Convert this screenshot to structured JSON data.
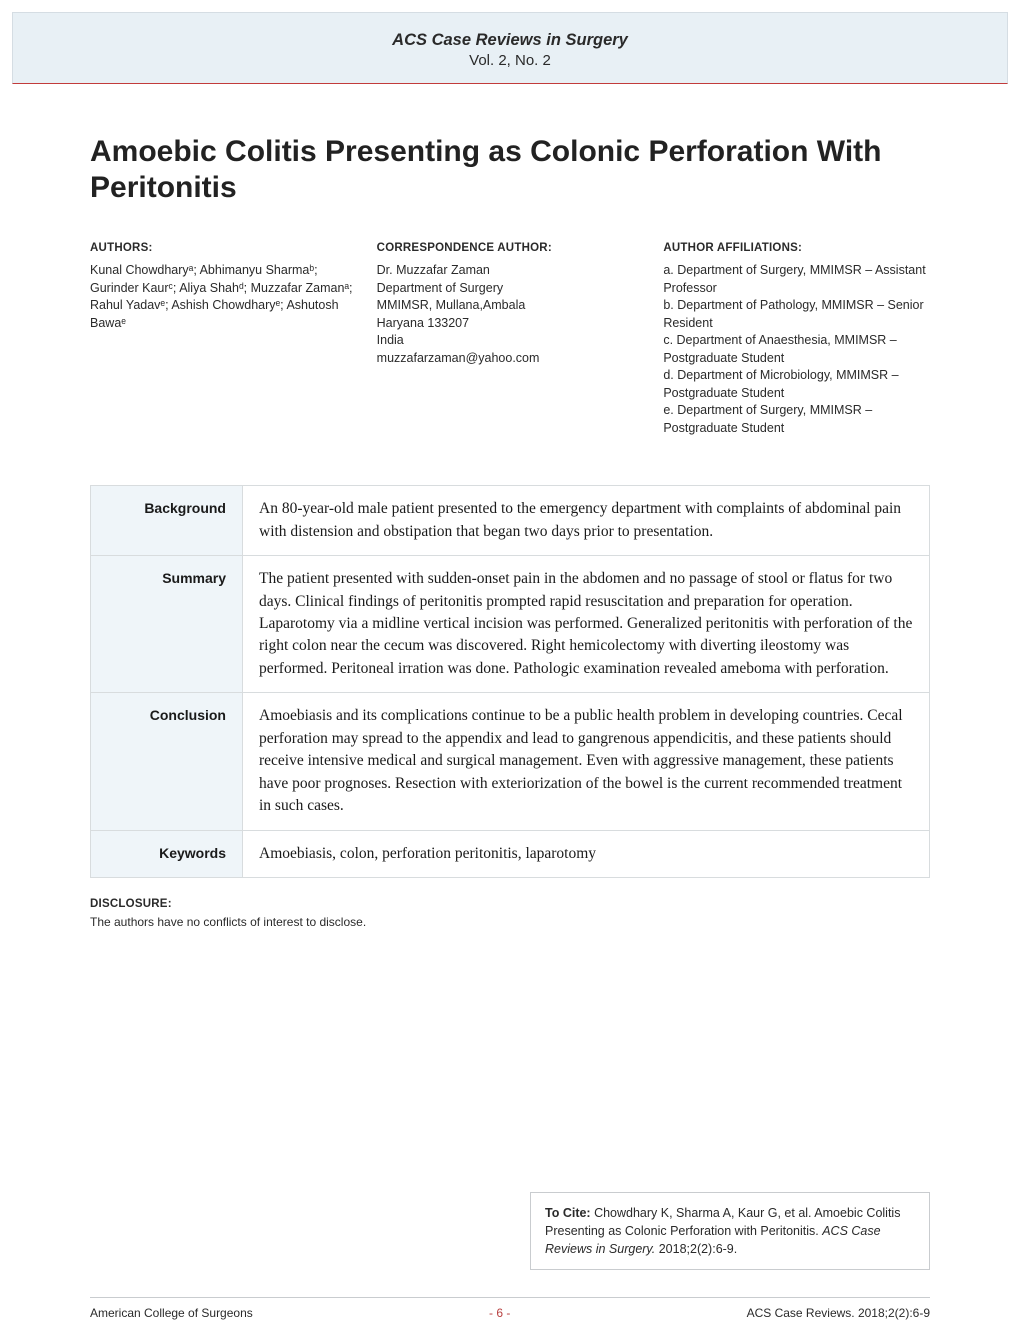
{
  "header": {
    "journal": "ACS Case Reviews in Surgery",
    "volume": "Vol. 2, No. 2"
  },
  "title": "Amoebic Colitis Presenting as Colonic Perforation With Peritonitis",
  "authors": {
    "heading": "AUTHORS:",
    "text": "Kunal Chowdharyᵃ; Abhimanyu Sharmaᵇ; Gurinder Kaurᶜ; Aliya Shahᵈ; Muzzafar Zamanᵃ; Rahul Yadavᵉ; Ashish Chowdharyᵉ; Ashutosh Bawaᵉ"
  },
  "correspondence": {
    "heading": "CORRESPONDENCE AUTHOR:",
    "name": "Dr. Muzzafar Zaman",
    "dept": "Department of Surgery",
    "inst": "MMIMSR, Mullana,Ambala",
    "region": "Haryana 133207",
    "country": "India",
    "email": "muzzafarzaman@yahoo.com"
  },
  "affiliations": {
    "heading": "AUTHOR AFFILIATIONS:",
    "a": "a. Department of Surgery, MMIMSR – Assistant Professor",
    "b": "b. Department of Pathology, MMIMSR – Senior Resident",
    "c": "c. Department of Anaesthesia, MMIMSR – Postgraduate Student",
    "d": "d. Department of Microbiology, MMIMSR – Postgraduate Student",
    "e": "e. Department of Surgery, MMIMSR – Postgraduate Student"
  },
  "abstract": {
    "background": {
      "label": "Background",
      "text": "An 80-year-old male patient presented to the emergency department with complaints of abdominal pain with distension and obstipation that began two days prior to presentation."
    },
    "summary": {
      "label": "Summary",
      "text": "The patient presented with sudden-onset pain in the abdomen and no passage of stool or flatus for two days. Clinical findings of peritonitis prompted rapid resuscitation and preparation for operation. Laparotomy via a midline vertical incision was performed. Generalized peritonitis with perforation of the right colon near the cecum was discovered. Right hemicolectomy with diverting ileostomy was performed. Peritoneal irration was done. Pathologic examination revealed ameboma with perforation."
    },
    "conclusion": {
      "label": "Conclusion",
      "text": "Amoebiasis and its complications continue to be a public health problem in developing countries. Cecal perforation may spread to the appendix and lead to gangrenous appendicitis, and these patients should receive intensive medical and surgical management. Even with aggressive management, these patients have poor prognoses. Resection with exteriorization of the bowel is the current recommended treatment in such cases."
    },
    "keywords": {
      "label": "Keywords",
      "text": "Amoebiasis, colon, perforation peritonitis, laparotomy"
    }
  },
  "disclosure": {
    "heading": "DISCLOSURE:",
    "text": "The authors have no conflicts of interest to disclose."
  },
  "cite": {
    "label": "To Cite:",
    "authors": " Chowdhary K, Sharma A, Kaur G, et al. Amoebic Colitis Presenting as Colonic Perforation with Peritonitis. ",
    "journal": "ACS Case Reviews in Surgery.",
    "ref": " 2018;2(2):6-9."
  },
  "footer": {
    "left": "American College of Surgeons",
    "center": "- 6 -",
    "right": "ACS Case Reviews. 2018;2(2):6-9"
  }
}
